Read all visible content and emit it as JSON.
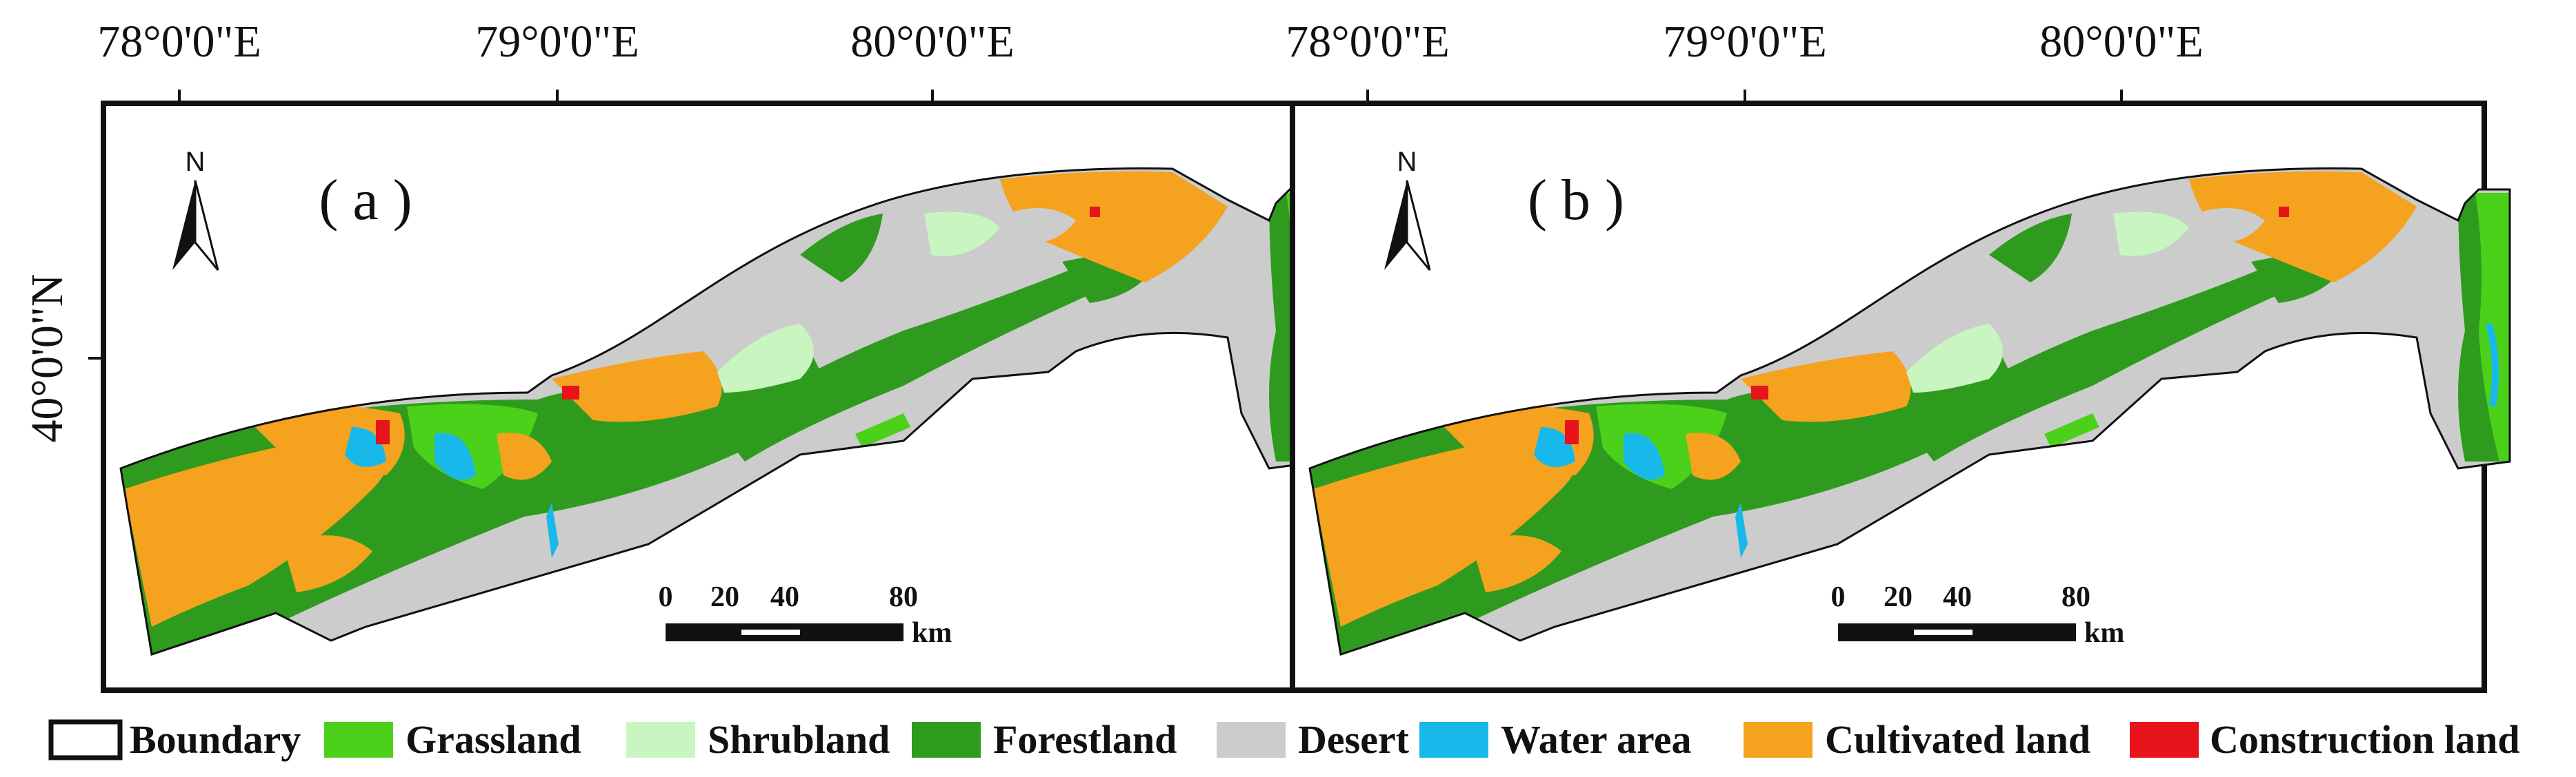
{
  "longitude_labels": [
    "78°0'0\"E",
    "79°0'0\"E",
    "80°0'0\"E"
  ],
  "latitude_label": "40°0'0\"N",
  "panels": [
    {
      "label": "( a )",
      "north": "N"
    },
    {
      "label": "( b )",
      "north": "N"
    }
  ],
  "scale_bar": {
    "ticks": [
      "0",
      "20",
      "40",
      "80"
    ],
    "unit": "km"
  },
  "legend": [
    {
      "label": "Boundary",
      "color": "#ffffff",
      "outline": true
    },
    {
      "label": "Grassland",
      "color": "#4cd11a"
    },
    {
      "label": "Shrubland",
      "color": "#c8f5c0"
    },
    {
      "label": "Forestland",
      "color": "#2f9b1e"
    },
    {
      "label": "Desert",
      "color": "#cccccc"
    },
    {
      "label": "Water area",
      "color": "#19b8ea"
    },
    {
      "label": "Cultivated land",
      "color": "#f5a21e"
    },
    {
      "label": "Construction land",
      "color": "#e8131b"
    }
  ]
}
